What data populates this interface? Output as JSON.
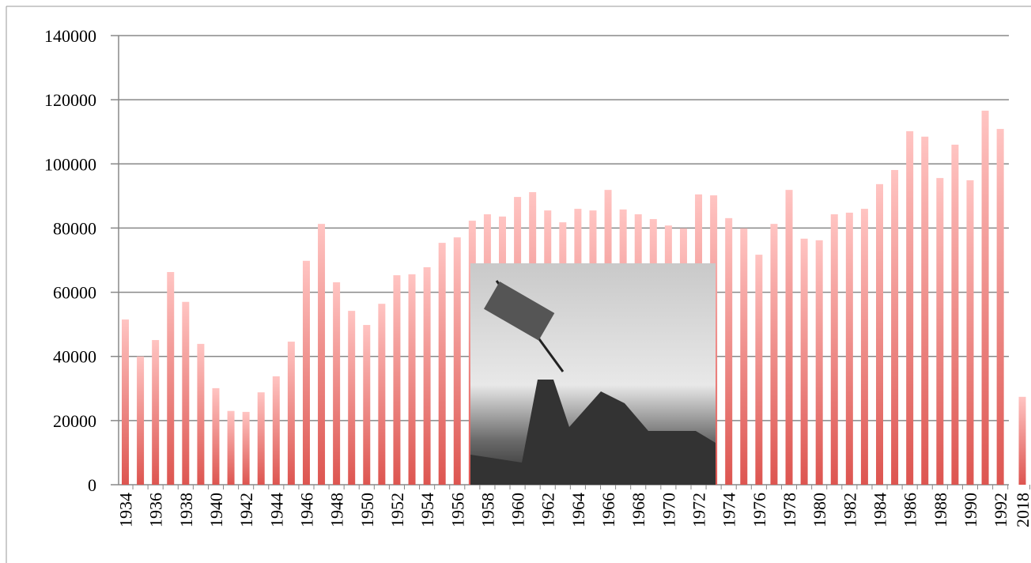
{
  "chart_data": {
    "type": "bar",
    "categories": [
      "1934",
      null,
      "1936",
      null,
      "1938",
      null,
      "1940",
      null,
      "1942",
      null,
      "1944",
      null,
      "1946",
      null,
      "1948",
      null,
      "1950",
      null,
      "1952",
      null,
      "1954",
      null,
      "1956",
      null,
      "1958",
      null,
      "1960",
      null,
      "1962",
      null,
      "1964",
      null,
      "1966",
      null,
      "1968",
      null,
      "1970",
      null,
      "1972",
      null,
      "1974",
      null,
      "1976",
      null,
      "1978",
      null,
      "1980",
      null,
      "1982",
      null,
      "1984",
      null,
      "1986",
      null,
      "1988",
      null,
      "1990",
      null,
      "1992",
      "2018"
    ],
    "values": [
      51500,
      40000,
      45100,
      66300,
      57000,
      43900,
      30100,
      23000,
      22700,
      28800,
      33800,
      44600,
      69800,
      81300,
      63100,
      54200,
      49800,
      56400,
      65300,
      65600,
      67800,
      75400,
      77100,
      82300,
      84300,
      83600,
      89700,
      91200,
      85500,
      81800,
      86000,
      85500,
      91900,
      85800,
      84300,
      82800,
      80800,
      79900,
      90500,
      90200,
      83100,
      79900,
      71700,
      81300,
      91900,
      76700,
      76200,
      84300,
      84800,
      86000,
      93700,
      98100,
      110200,
      108500,
      95600,
      106000,
      94900,
      116600,
      110900,
      27400
    ],
    "color": "#dd5550",
    "ylim": [
      0,
      140000
    ],
    "yticks": [
      0,
      20000,
      40000,
      60000,
      80000,
      100000,
      120000,
      140000
    ],
    "grid": true
  }
}
